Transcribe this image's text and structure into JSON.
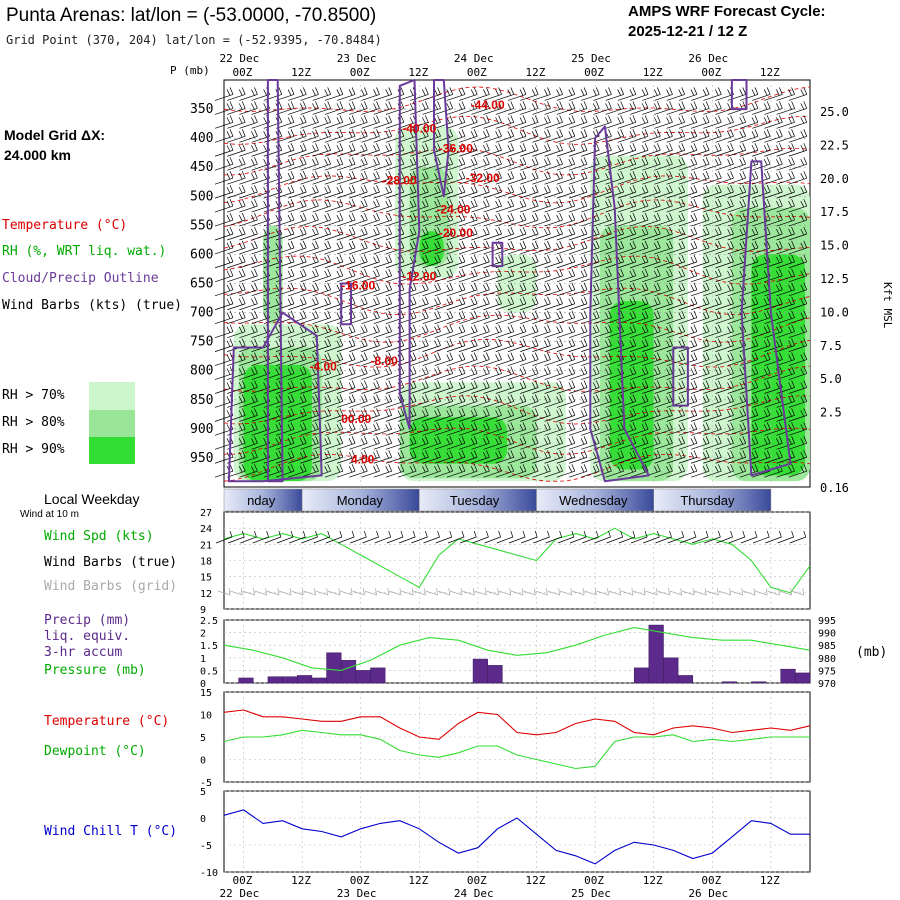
{
  "header": {
    "title": "Punta Arenas:  lat/lon = (-53.0000, -70.8500)",
    "grid_point": "Grid Point (370, 204) lat/lon = (-52.9395, -70.8484)",
    "cycle_line1": "AMPS WRF Forecast Cycle:",
    "cycle_line2": "2025-12-21 / 12  Z"
  },
  "left_panel": {
    "model_grid_line1": "Model Grid ΔX:",
    "model_grid_line2": " 24.000 km",
    "temperature_label": "Temperature (°C)",
    "rh_label": "RH (%, WRT liq. wat.)",
    "cloud_label": "Cloud/Precip Outline",
    "wind_label": "Wind Barbs (kts) (true)",
    "rh_legend": [
      {
        "label": "RH > 70%",
        "color": "#ccf5cc"
      },
      {
        "label": "RH > 80%",
        "color": "#99e699"
      },
      {
        "label": "RH > 90%",
        "color": "#33dd33"
      }
    ]
  },
  "time_axis": {
    "top_dates": [
      "22 Dec",
      "23 Dec",
      "24 Dec",
      "25 Dec",
      "26 Dec"
    ],
    "top_hours": [
      "00Z",
      "12Z",
      "00Z",
      "12Z",
      "00Z",
      "12Z",
      "00Z",
      "12Z",
      "00Z",
      "12Z"
    ],
    "bottom_hours": [
      "00Z",
      "12Z",
      "00Z",
      "12Z",
      "00Z",
      "12Z",
      "00Z",
      "12Z",
      "00Z",
      "12Z"
    ],
    "bottom_dates": [
      "22 Dec",
      "23 Dec",
      "24 Dec",
      "25 Dec",
      "26 Dec"
    ]
  },
  "weekday_bar": {
    "title": "Local Weekday",
    "subtitle": "Wind at 10 m",
    "days": [
      "Sunday",
      "Monday",
      "Tuesday",
      "Wednesday",
      "Thursday"
    ],
    "first_day_visible": "nday"
  },
  "labels": {
    "p_mb": "P (mb)",
    "kft_msl": "Kft MSL",
    "mb_unit": "(mb)",
    "wind_spd": "Wind Spd (kts)",
    "wind_barbs_true": "Wind Barbs (true)",
    "wind_barbs_grid": "Wind Barbs (grid)",
    "precip1": "Precip (mm)",
    "precip2": "liq. equiv.",
    "precip3": "3-hr accum",
    "pressure": "Pressure (mb)",
    "temperature": "Temperature (°C)",
    "dewpoint": "Dewpoint (°C)",
    "wind_chill": "Wind Chill T (°C)"
  },
  "colors": {
    "temperature": "#dd0000",
    "dewpoint": "#00bb00",
    "rh_green": "#33dd33",
    "cloud_outline": "#6a3a9a",
    "precip_bar": "#5b2a8a",
    "wind_chill": "#0000cc",
    "grid_barbs": "#aaaaaa",
    "weekday_blue": "#3a4a9a"
  },
  "chart_data": [
    {
      "type": "heatmap",
      "title": "Cross-section: pressure vs time",
      "ylabel": "P (mb)",
      "y_ticks": [
        350,
        400,
        450,
        500,
        550,
        600,
        650,
        700,
        750,
        800,
        850,
        900,
        950
      ],
      "ylim": [
        1000,
        300
      ],
      "right_axis_label": "Kft MSL",
      "right_ticks": [
        "25.0",
        "22.5",
        "20.0",
        "17.5",
        "15.0",
        "12.5",
        "10.0",
        "7.5",
        "5.0",
        "2.5",
        "0.16"
      ],
      "x_hours_from_start": [
        0,
        120
      ],
      "temperature_contour_labels": [
        {
          "text": "-44.00",
          "t": 50.5,
          "p": 350
        },
        {
          "text": "-40.00",
          "t": 36.5,
          "p": 390
        },
        {
          "text": "-36.00",
          "t": 44,
          "p": 425
        },
        {
          "text": "-32.00",
          "t": 49.5,
          "p": 475
        },
        {
          "text": "-28.00",
          "t": 32.5,
          "p": 480
        },
        {
          "text": "-24.00",
          "t": 43.5,
          "p": 530
        },
        {
          "text": "-20.00",
          "t": 44,
          "p": 570
        },
        {
          "text": "-16.00",
          "t": 24,
          "p": 660
        },
        {
          "text": "-12.00",
          "t": 36.5,
          "p": 645
        },
        {
          "text": "-8.00",
          "t": 30,
          "p": 790
        },
        {
          "text": "-4.00",
          "t": 17.5,
          "p": 800
        },
        {
          "text": "00.00",
          "t": 24,
          "p": 890
        },
        {
          "text": "4.00",
          "t": 26,
          "p": 960
        }
      ]
    },
    {
      "type": "line",
      "title": "Wind Spd (kts)",
      "ylim": [
        9,
        27
      ],
      "y_ticks": [
        9,
        12,
        15,
        18,
        21,
        24,
        27
      ],
      "x": [
        0,
        4,
        8,
        12,
        16,
        20,
        24,
        28,
        32,
        36,
        40,
        44,
        48,
        52,
        56,
        60,
        64,
        68,
        72,
        76,
        80,
        84,
        88,
        92,
        96,
        100,
        104,
        108,
        112,
        116,
        120
      ],
      "series": [
        {
          "name": "Wind Spd",
          "values": [
            22,
            23,
            22,
            23,
            22,
            23,
            21,
            19,
            17,
            15,
            13,
            19,
            22,
            21,
            20,
            19,
            18,
            22,
            23,
            22,
            24,
            22,
            23,
            22,
            21,
            22,
            21,
            18,
            13,
            12,
            17
          ]
        }
      ]
    },
    {
      "type": "bar",
      "title": "Precip (mm) / Pressure (mb)",
      "ylim": [
        0,
        2.5
      ],
      "y_ticks": [
        0.0,
        0.5,
        1.0,
        1.5,
        2.0,
        2.5
      ],
      "right_ylim": [
        970,
        995
      ],
      "right_ticks": [
        970,
        975,
        980,
        985,
        990,
        995
      ],
      "precip_x": [
        0,
        3,
        6,
        9,
        12,
        15,
        18,
        21,
        24,
        27,
        30,
        33,
        36,
        39,
        42,
        45,
        48,
        51,
        54,
        57,
        60,
        63,
        66,
        69,
        72,
        75,
        78,
        81,
        84,
        87,
        90,
        93,
        96,
        99,
        102,
        105,
        108,
        111,
        114,
        117
      ],
      "precip_values": [
        0.0,
        0.2,
        0.0,
        0.25,
        0.25,
        0.3,
        0.2,
        1.2,
        0.9,
        0.5,
        0.6,
        0.0,
        0.0,
        0.0,
        0.0,
        0.0,
        0.0,
        0.95,
        0.7,
        0.0,
        0.0,
        0.0,
        0.0,
        0.0,
        0.0,
        0.0,
        0.0,
        0.0,
        0.6,
        2.3,
        1.0,
        0.3,
        0.0,
        0.0,
        0.05,
        0.0,
        0.05,
        0.0,
        0.55,
        0.4
      ],
      "pressure_x": [
        0,
        6,
        12,
        18,
        24,
        30,
        36,
        42,
        48,
        54,
        60,
        66,
        72,
        78,
        84,
        90,
        96,
        102,
        108,
        114,
        120
      ],
      "pressure_values": [
        985,
        983,
        980,
        976,
        975,
        979,
        985,
        988,
        987,
        983,
        981,
        982,
        985,
        989,
        992,
        990,
        988,
        987,
        987,
        985,
        983
      ]
    },
    {
      "type": "line",
      "title": "Temperature / Dewpoint (°C)",
      "ylim": [
        -5,
        15
      ],
      "y_ticks": [
        -5,
        0,
        5,
        10,
        15
      ],
      "x": [
        0,
        4,
        8,
        12,
        16,
        20,
        24,
        28,
        32,
        36,
        40,
        44,
        48,
        52,
        56,
        60,
        64,
        68,
        72,
        76,
        80,
        84,
        88,
        92,
        96,
        100,
        104,
        108,
        112,
        116,
        120
      ],
      "series": [
        {
          "name": "Temperature",
          "values": [
            10.5,
            11,
            9.5,
            9.5,
            9,
            8.5,
            8.5,
            9.5,
            9.5,
            7,
            5,
            4.5,
            8,
            10.5,
            10,
            6,
            5.5,
            6,
            8,
            9,
            8.5,
            6,
            5.5,
            7,
            7.5,
            7,
            6,
            6.5,
            7,
            6.5,
            7.5
          ]
        },
        {
          "name": "Dewpoint",
          "values": [
            4,
            5,
            5,
            5.5,
            6.5,
            6,
            5.5,
            5.5,
            4.5,
            2,
            1,
            0.5,
            1.5,
            3,
            3,
            1,
            0,
            -1,
            -2,
            -1.5,
            4,
            5,
            5,
            5.5,
            4,
            4.5,
            4,
            4.5,
            5,
            5,
            5
          ]
        }
      ]
    },
    {
      "type": "line",
      "title": "Wind Chill T (°C)",
      "ylim": [
        -10,
        5
      ],
      "y_ticks": [
        -10,
        -5,
        0,
        5
      ],
      "x": [
        0,
        4,
        8,
        12,
        16,
        20,
        24,
        28,
        32,
        36,
        40,
        44,
        48,
        52,
        56,
        60,
        64,
        68,
        72,
        76,
        80,
        84,
        88,
        92,
        96,
        100,
        104,
        108,
        112,
        116,
        120
      ],
      "series": [
        {
          "name": "Wind Chill",
          "values": [
            0.5,
            1.5,
            -1,
            -0.5,
            -2,
            -2.5,
            -3.5,
            -2,
            -1,
            -0.5,
            -2,
            -4.5,
            -6.5,
            -5.5,
            -2,
            0,
            -3,
            -6,
            -7,
            -8.5,
            -6,
            -4.5,
            -5,
            -6,
            -7.5,
            -6.5,
            -3.5,
            -0.5,
            -1,
            -3,
            -3
          ]
        }
      ]
    }
  ]
}
